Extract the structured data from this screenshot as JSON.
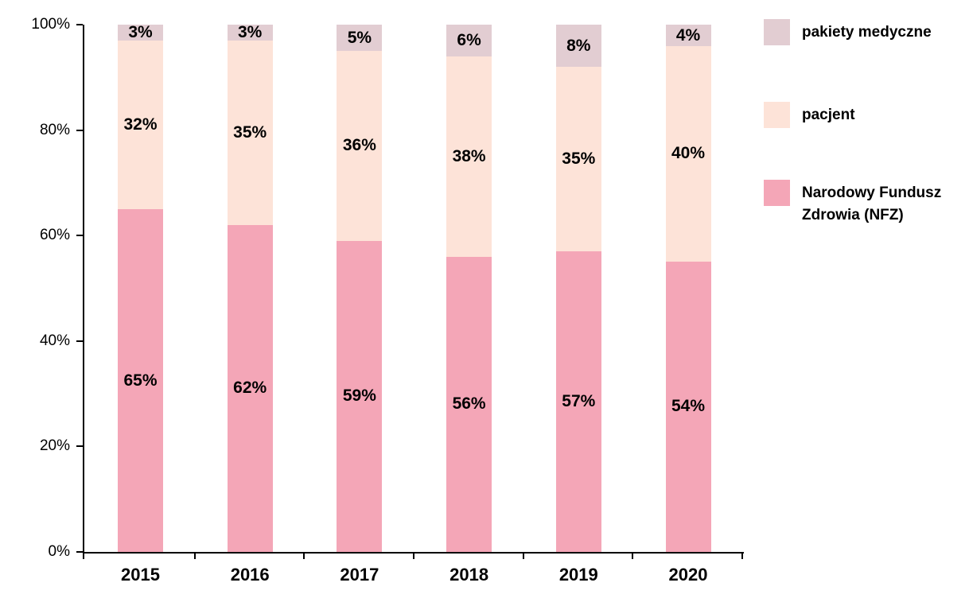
{
  "chart_data": {
    "type": "bar",
    "stacked": true,
    "orientation": "vertical",
    "categories": [
      "2015",
      "2016",
      "2017",
      "2018",
      "2019",
      "2020"
    ],
    "series": [
      {
        "name": "Narodowy Fundusz Zdrowia (NFZ)",
        "color": "#f4a6b7",
        "values": [
          65,
          62,
          59,
          56,
          57,
          54
        ]
      },
      {
        "name": "pacjent",
        "color": "#fde3d8",
        "values": [
          32,
          35,
          36,
          38,
          35,
          40
        ]
      },
      {
        "name": "pakiety medyczne",
        "color": "#e2cdd2",
        "values": [
          3,
          3,
          5,
          6,
          8,
          4
        ]
      }
    ],
    "value_label_format": "{v}%",
    "y_tick_labels": [
      "0%",
      "20%",
      "40%",
      "60%",
      "80%",
      "100%"
    ],
    "ylim": [
      0,
      100
    ],
    "xlabel": "",
    "ylabel": "",
    "title": "",
    "grid": false,
    "legend_position": "right",
    "legend_order": [
      "pakiety medyczne",
      "pacjent",
      "Narodowy Fundusz Zdrowia (NFZ)"
    ],
    "axis_color": "#000000",
    "label_color": "#000000"
  }
}
